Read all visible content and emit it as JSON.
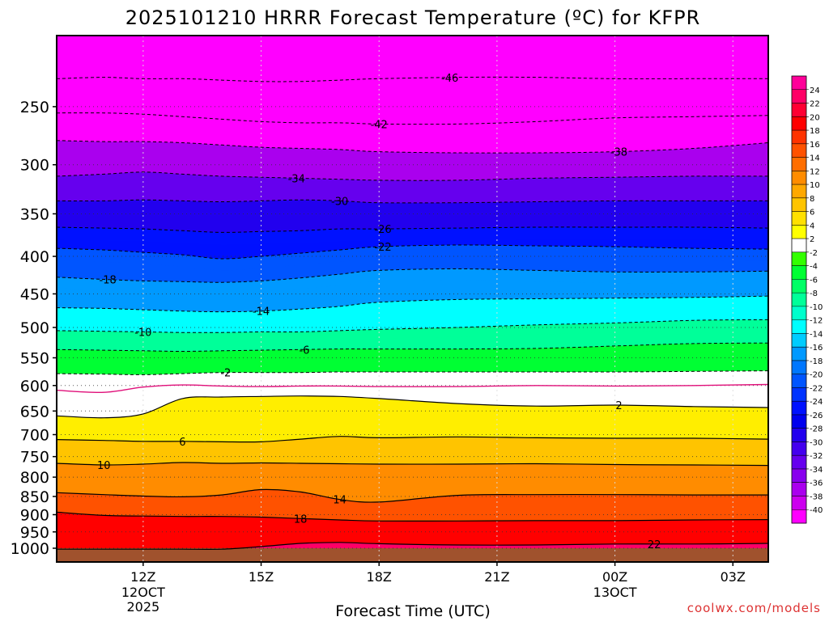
{
  "chart_data": {
    "type": "contour",
    "title": "2025101210 HRRR Forecast Temperature (ºC) for KFPR",
    "xlabel": "Forecast Time (UTC)",
    "ylabel": "",
    "credit": "coolwx.com/models",
    "x_range_hours": [
      9.8,
      27.9
    ],
    "y_range_hpa": [
      200,
      1000
    ],
    "y_ticks": [
      {
        "p": 250,
        "label": "250"
      },
      {
        "p": 300,
        "label": "300"
      },
      {
        "p": 350,
        "label": "350"
      },
      {
        "p": 400,
        "label": "400"
      },
      {
        "p": 450,
        "label": "450"
      },
      {
        "p": 500,
        "label": "500"
      },
      {
        "p": 550,
        "label": "550"
      },
      {
        "p": 600,
        "label": "600"
      },
      {
        "p": 650,
        "label": "650"
      },
      {
        "p": 700,
        "label": "700"
      },
      {
        "p": 750,
        "label": "750"
      },
      {
        "p": 800,
        "label": "800"
      },
      {
        "p": 850,
        "label": "850"
      },
      {
        "p": 900,
        "label": "900"
      },
      {
        "p": 950,
        "label": "950"
      },
      {
        "p": 1000,
        "label": "1000"
      }
    ],
    "x_ticks": [
      {
        "h": 12,
        "label": "12Z",
        "sub1": "12OCT",
        "sub2": "2025"
      },
      {
        "h": 15,
        "label": "15Z",
        "sub1": "",
        "sub2": ""
      },
      {
        "h": 18,
        "label": "18Z",
        "sub1": "",
        "sub2": ""
      },
      {
        "h": 21,
        "label": "21Z",
        "sub1": "",
        "sub2": ""
      },
      {
        "h": 24,
        "label": "00Z",
        "sub1": "13OCT",
        "sub2": ""
      },
      {
        "h": 27,
        "label": "03Z",
        "sub1": "",
        "sub2": ""
      }
    ],
    "colorbar": {
      "labels": [
        24,
        22,
        20,
        18,
        16,
        14,
        12,
        10,
        8,
        6,
        4,
        2,
        -2,
        -4,
        -6,
        -8,
        -10,
        -12,
        -14,
        -16,
        -18,
        -20,
        -22,
        -24,
        -26,
        -28,
        -30,
        -32,
        -34,
        -36,
        -38,
        -40
      ],
      "colors": [
        "#ff0099",
        "#ff0066",
        "#ff0033",
        "#ff0000",
        "#ff3300",
        "#ff5200",
        "#ff6e00",
        "#ff8c00",
        "#ffa800",
        "#ffc400",
        "#ffe000",
        "#ffff00",
        "#ffffff",
        "#33ff00",
        "#00ff33",
        "#00ff66",
        "#00ff99",
        "#00ffcc",
        "#00ffff",
        "#00ccff",
        "#0099ff",
        "#0077ff",
        "#0055ff",
        "#0033ff",
        "#0011ff",
        "#0000ee",
        "#2200ee",
        "#4400ee",
        "#6600ee",
        "#8800ee",
        "#aa00ee",
        "#cc00ee",
        "#ff00ff"
      ]
    },
    "isotherms": [
      {
        "value": -46,
        "label": "-46",
        "label_time": 19.8,
        "p": [
          229,
          228,
          229,
          229,
          230,
          231,
          231,
          230,
          229,
          228,
          228,
          229,
          229,
          229
        ]
      },
      {
        "value": -42,
        "label": "-42",
        "label_time": 18.0,
        "p": [
          255,
          255,
          256,
          258,
          260,
          262,
          263,
          263,
          264,
          264,
          262,
          259,
          258,
          257
        ]
      },
      {
        "value": -38,
        "label": "-38",
        "label_time": 24.1,
        "p": [
          278,
          279,
          279,
          280,
          282,
          284,
          285,
          286,
          288,
          289,
          289,
          288,
          285,
          280
        ]
      },
      {
        "value": -34,
        "label": "-34",
        "label_time": 15.9,
        "p": [
          311,
          309,
          307,
          309,
          311,
          312,
          313,
          314,
          315,
          315,
          313,
          312,
          311,
          311
        ]
      },
      {
        "value": -30,
        "label": "-30",
        "label_time": 17.0,
        "p": [
          336,
          336,
          335,
          336,
          337,
          336,
          335,
          336,
          338,
          338,
          337,
          336,
          336,
          336
        ]
      },
      {
        "value": -26,
        "label": "-26",
        "label_time": 18.1,
        "p": [
          365,
          366,
          367,
          369,
          371,
          370,
          369,
          367,
          367,
          366,
          365,
          365,
          365,
          366
        ]
      },
      {
        "value": -22,
        "label": "-22",
        "label_time": 18.1,
        "p": [
          390,
          392,
          395,
          398,
          403,
          400,
          396,
          392,
          388,
          386,
          387,
          388,
          390,
          391
        ]
      },
      {
        "value": -18,
        "label": "-18",
        "label_time": 11.1,
        "p": [
          427,
          430,
          432,
          433,
          434,
          432,
          428,
          423,
          418,
          416,
          418,
          420,
          420,
          419
        ]
      },
      {
        "value": -14,
        "label": "-14",
        "label_time": 15.0,
        "p": [
          470,
          471,
          473,
          475,
          476,
          475,
          472,
          468,
          462,
          458,
          457,
          456,
          455,
          453
        ]
      },
      {
        "value": -10,
        "label": "-10",
        "label_time": 12.0,
        "p": [
          505,
          506,
          507,
          508,
          508,
          507,
          507,
          505,
          503,
          500,
          496,
          493,
          489,
          488
        ]
      },
      {
        "value": -6,
        "label": "-6",
        "label_time": 16.1,
        "p": [
          536,
          537,
          538,
          539,
          538,
          537,
          536,
          535,
          535,
          535,
          534,
          530,
          526,
          525
        ]
      },
      {
        "value": -2,
        "label": "-2",
        "label_time": 14.1,
        "p": [
          578,
          579,
          580,
          578,
          576,
          576,
          576,
          575,
          575,
          575,
          575,
          575,
          574,
          573
        ]
      },
      {
        "value": 2,
        "label": "2",
        "label_time": 24.1,
        "p": [
          660,
          664,
          656,
          625,
          622,
          621,
          620,
          621,
          625,
          635,
          640,
          638,
          641,
          643
        ]
      },
      {
        "value": 6,
        "label": "6",
        "label_time": 13.0,
        "p": [
          711,
          713,
          715,
          715,
          716,
          716,
          710,
          704,
          707,
          705,
          707,
          708,
          708,
          710
        ]
      },
      {
        "value": 10,
        "label": "10",
        "label_time": 11.0,
        "p": [
          766,
          770,
          768,
          764,
          766,
          765,
          766,
          767,
          768,
          768,
          767,
          769,
          770,
          771
        ]
      },
      {
        "value": 14,
        "label": "14",
        "label_time": 17.0,
        "p": [
          840,
          845,
          849,
          851,
          846,
          832,
          838,
          858,
          865,
          847,
          845,
          845,
          846,
          846
        ]
      },
      {
        "value": 18,
        "label": "18",
        "label_time": 16.0,
        "p": [
          893,
          902,
          904,
          905,
          905,
          907,
          911,
          915,
          918,
          918,
          917,
          917,
          915,
          914
        ]
      },
      {
        "value": 22,
        "label": "22",
        "label_time": 25.0,
        "p": [
          1003,
          1003,
          1003,
          1003,
          1003,
          995,
          985,
          982,
          986,
          990,
          990,
          987,
          987,
          985
        ]
      }
    ],
    "pink_minus2_line_p": [
      609,
      613,
      603,
      599,
      601,
      602,
      601,
      601,
      602,
      602,
      600,
      601,
      600,
      598
    ],
    "hour_knots": [
      9.8,
      11,
      12,
      13,
      14,
      15,
      16,
      17,
      18,
      20,
      22,
      24,
      26,
      27.9
    ],
    "surface_pressure_hpa": 1000
  }
}
